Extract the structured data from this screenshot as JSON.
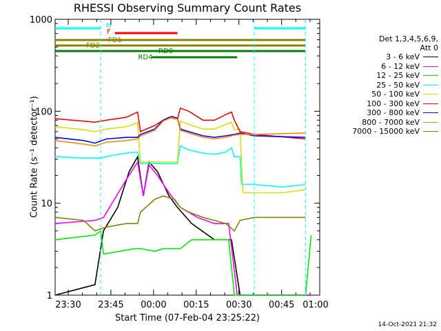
{
  "chart_data": {
    "type": "line",
    "title": "RHESSI Observing Summary Count Rates",
    "xlabel": "Start Time (07-Feb-04 23:25:22)",
    "ylabel": "Count Rate (s⁻¹ detector⁻¹)",
    "yscale": "log",
    "ylim": [
      1,
      1000
    ],
    "xlim_minutes": [
      0,
      40
    ],
    "x_tick_labels": [
      "23:30",
      "23:45",
      "00:00",
      "00:15",
      "00:30",
      "00:45",
      "01:00"
    ],
    "y_tick_labels": [
      "1",
      "10",
      "100",
      "1000"
    ],
    "legend_header": [
      "Det 1,3,4,5,6,9,",
      "Att 0"
    ],
    "legend_placement": "right",
    "series": [
      {
        "name": "3 - 6 keV",
        "color": "#000000",
        "points": [
          [
            0,
            1.0
          ],
          [
            14,
            1.3
          ],
          [
            17,
            5
          ],
          [
            22,
            9
          ],
          [
            26,
            22
          ],
          [
            29,
            32
          ],
          [
            31,
            12
          ],
          [
            33,
            28
          ],
          [
            36,
            22
          ],
          [
            40,
            12
          ],
          [
            43,
            9
          ],
          [
            48,
            6
          ],
          [
            56,
            4
          ],
          [
            62,
            4
          ],
          [
            65,
            1.0
          ],
          [
            90,
            1.0
          ]
        ]
      },
      {
        "name": "6 - 12 keV",
        "color": "#ff00ff",
        "points": [
          [
            0,
            6
          ],
          [
            14,
            6.5
          ],
          [
            17,
            7
          ],
          [
            20,
            10
          ],
          [
            25,
            18
          ],
          [
            29,
            28
          ],
          [
            31,
            12
          ],
          [
            33,
            26
          ],
          [
            36,
            20
          ],
          [
            40,
            13
          ],
          [
            44,
            9
          ],
          [
            50,
            7
          ],
          [
            56,
            6
          ],
          [
            61,
            6
          ],
          [
            64,
            1.0
          ],
          [
            90,
            1.0
          ]
        ]
      },
      {
        "name": "12 - 25 keV",
        "color": "#00ee00",
        "points": [
          [
            0,
            4
          ],
          [
            14,
            4.5
          ],
          [
            16,
            5
          ],
          [
            17,
            2.8
          ],
          [
            28,
            3.2
          ],
          [
            30,
            3.2
          ],
          [
            35,
            3.0
          ],
          [
            38,
            3.2
          ],
          [
            44,
            3.2
          ],
          [
            48,
            4
          ],
          [
            56,
            4
          ],
          [
            61,
            4
          ],
          [
            63,
            1.0
          ],
          [
            88,
            1.0
          ],
          [
            90,
            4.5
          ]
        ]
      },
      {
        "name": "25 - 50 keV",
        "color": "#00ffff",
        "points": [
          [
            0,
            32
          ],
          [
            10,
            31
          ],
          [
            16,
            31
          ],
          [
            20,
            33
          ],
          [
            25,
            35
          ],
          [
            29,
            36
          ],
          [
            30,
            27
          ],
          [
            43,
            27
          ],
          [
            44,
            42
          ],
          [
            47,
            38
          ],
          [
            52,
            35
          ],
          [
            56,
            34
          ],
          [
            60,
            36
          ],
          [
            62,
            40
          ],
          [
            63,
            32
          ],
          [
            65,
            32
          ],
          [
            65.5,
            16
          ],
          [
            70,
            16
          ],
          [
            80,
            15
          ],
          [
            88,
            16
          ]
        ]
      },
      {
        "name": "50 - 100 keV",
        "color": "#dddd00",
        "points": [
          [
            0,
            68
          ],
          [
            10,
            63
          ],
          [
            14,
            60
          ],
          [
            18,
            64
          ],
          [
            25,
            68
          ],
          [
            29,
            75
          ],
          [
            30,
            28
          ],
          [
            43,
            28
          ],
          [
            44,
            78
          ],
          [
            47,
            72
          ],
          [
            52,
            64
          ],
          [
            56,
            64
          ],
          [
            60,
            72
          ],
          [
            62,
            76
          ],
          [
            63,
            63
          ],
          [
            65,
            64
          ],
          [
            66,
            13
          ],
          [
            80,
            13
          ],
          [
            88,
            14
          ]
        ]
      },
      {
        "name": "100 - 300 keV",
        "color": "#ff0000",
        "points": [
          [
            0,
            83
          ],
          [
            10,
            78
          ],
          [
            14,
            76
          ],
          [
            18,
            80
          ],
          [
            25,
            86
          ],
          [
            29,
            98
          ],
          [
            30,
            60
          ],
          [
            31,
            62
          ],
          [
            35,
            70
          ],
          [
            38,
            80
          ],
          [
            40,
            86
          ],
          [
            43,
            82
          ],
          [
            44,
            108
          ],
          [
            47,
            100
          ],
          [
            52,
            80
          ],
          [
            56,
            80
          ],
          [
            60,
            92
          ],
          [
            62,
            98
          ],
          [
            63,
            80
          ],
          [
            65,
            60
          ],
          [
            70,
            56
          ],
          [
            88,
            50
          ]
        ]
      },
      {
        "name": "300 - 800 keV",
        "color": "#0000ff",
        "points": [
          [
            0,
            52
          ],
          [
            10,
            48
          ],
          [
            14,
            45
          ],
          [
            18,
            50
          ],
          [
            25,
            52
          ],
          [
            29,
            52
          ],
          [
            30,
            56
          ],
          [
            35,
            64
          ],
          [
            38,
            80
          ],
          [
            41,
            88
          ],
          [
            43,
            84
          ],
          [
            44,
            64
          ],
          [
            47,
            60
          ],
          [
            52,
            54
          ],
          [
            56,
            52
          ],
          [
            60,
            54
          ],
          [
            63,
            56
          ],
          [
            65,
            58
          ],
          [
            70,
            54
          ],
          [
            88,
            52
          ]
        ]
      },
      {
        "name": "800 - 7000 keV",
        "color": "#ff8c00",
        "points": [
          [
            0,
            48
          ],
          [
            10,
            44
          ],
          [
            14,
            42
          ],
          [
            18,
            46
          ],
          [
            25,
            48
          ],
          [
            29,
            50
          ],
          [
            30,
            54
          ],
          [
            35,
            62
          ],
          [
            38,
            78
          ],
          [
            41,
            86
          ],
          [
            43,
            82
          ],
          [
            44,
            62
          ],
          [
            47,
            58
          ],
          [
            52,
            52
          ],
          [
            56,
            50
          ],
          [
            60,
            52
          ],
          [
            63,
            55
          ],
          [
            65,
            56
          ],
          [
            70,
            56
          ],
          [
            88,
            58
          ]
        ]
      },
      {
        "name": "7000 - 15000 keV",
        "color": "#8b8000",
        "points": [
          [
            0,
            7
          ],
          [
            10,
            6.5
          ],
          [
            14,
            5
          ],
          [
            18,
            5.5
          ],
          [
            25,
            6
          ],
          [
            29,
            6
          ],
          [
            30,
            8
          ],
          [
            35,
            11
          ],
          [
            38,
            12
          ],
          [
            42,
            11
          ],
          [
            44,
            9
          ],
          [
            47,
            8
          ],
          [
            52,
            7
          ],
          [
            56,
            6.5
          ],
          [
            60,
            6
          ],
          [
            63,
            5
          ],
          [
            65,
            6.5
          ],
          [
            70,
            7
          ],
          [
            88,
            7
          ]
        ]
      }
    ],
    "annotations": [
      {
        "label": "N",
        "color": "#00ffff",
        "start": 0,
        "end": 16
      },
      {
        "label": "N",
        "color": "#00ffff",
        "start": 70,
        "end": 88
      },
      {
        "label": "F",
        "color": "#ff0000",
        "start": 21,
        "end": 43
      },
      {
        "label": "FD1",
        "color": "#8b8000",
        "start": 0,
        "end": 88
      },
      {
        "label": "FD2",
        "color": "#8b8000",
        "start": 0,
        "end": 88
      },
      {
        "label": "RD0",
        "color": "#008000",
        "start": 0,
        "end": 88
      },
      {
        "label": "RD4",
        "color": "#008000",
        "start": 34,
        "end": 64
      }
    ]
  },
  "timestamp": "14-Oct-2021 21:32"
}
